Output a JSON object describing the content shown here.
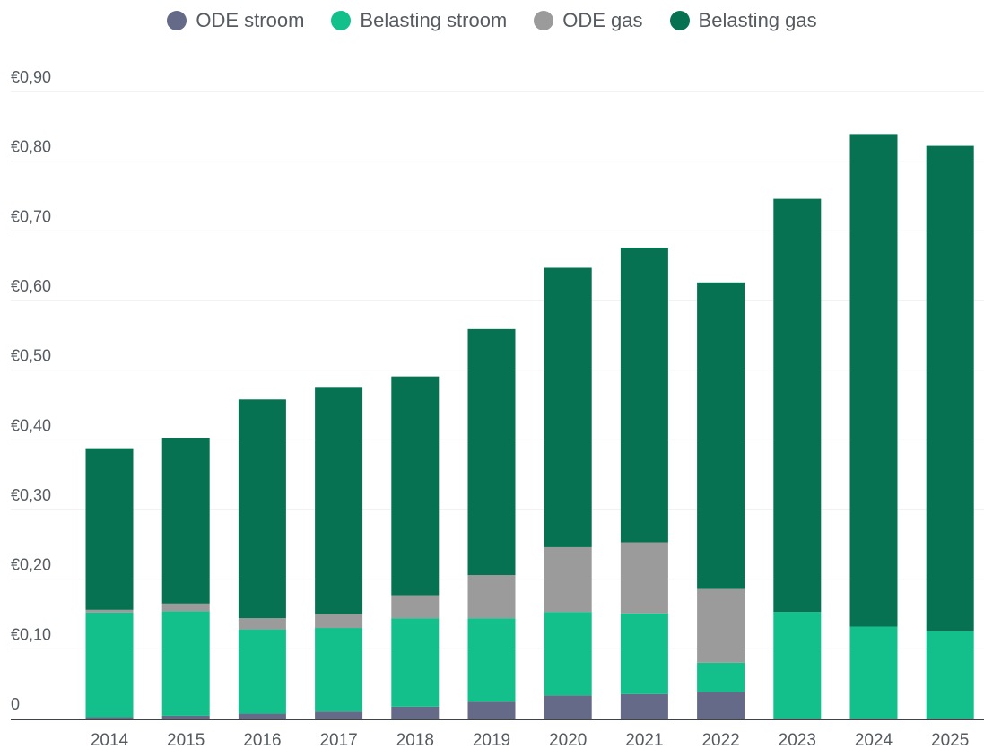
{
  "chart_data": {
    "type": "bar",
    "stacked": true,
    "categories": [
      "2014",
      "2015",
      "2016",
      "2017",
      "2018",
      "2019",
      "2020",
      "2021",
      "2022",
      "2023",
      "2024",
      "2025"
    ],
    "series": [
      {
        "name": "ODE stroom",
        "color": "#646a87",
        "values": [
          0.002,
          0.004,
          0.007,
          0.01,
          0.017,
          0.024,
          0.033,
          0.035,
          0.038,
          0,
          0,
          0
        ]
      },
      {
        "name": "Belasting stroom",
        "color": "#13bf8b",
        "values": [
          0.15,
          0.15,
          0.121,
          0.12,
          0.127,
          0.12,
          0.12,
          0.116,
          0.042,
          0.153,
          0.132,
          0.125
        ]
      },
      {
        "name": "ODE gas",
        "color": "#9b9b9b",
        "values": [
          0.004,
          0.011,
          0.016,
          0.02,
          0.033,
          0.062,
          0.093,
          0.102,
          0.106,
          0,
          0,
          0
        ]
      },
      {
        "name": "Belasting gas",
        "color": "#077251",
        "values": [
          0.232,
          0.238,
          0.314,
          0.326,
          0.314,
          0.353,
          0.401,
          0.423,
          0.44,
          0.593,
          0.707,
          0.697
        ]
      }
    ],
    "y_ticks": [
      "0",
      "€0,10",
      "€0,20",
      "€0,30",
      "€0,40",
      "€0,50",
      "€0,60",
      "€0,70",
      "€0,80",
      "€0,90"
    ],
    "ylim": [
      0,
      0.9
    ],
    "grid": true,
    "legend_position": "top-center"
  }
}
